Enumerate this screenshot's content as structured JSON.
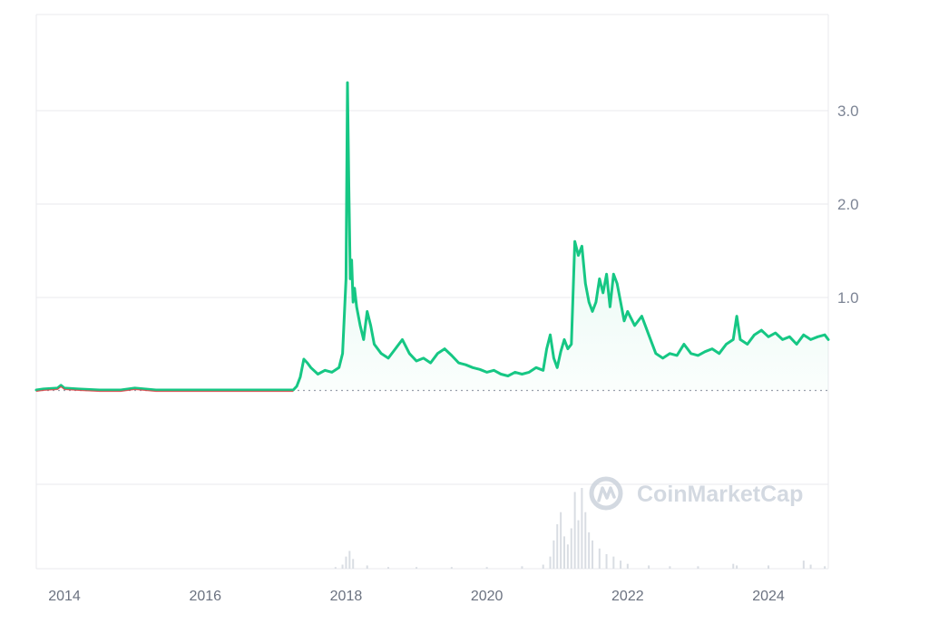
{
  "watermark": "CoinMarketCap",
  "colors": {
    "line": "#16c784",
    "below_baseline": "#ea3943",
    "fill_top": "#16c784",
    "volume": "#d9dde3",
    "grid": "#e8eaee",
    "axis_text": "#7d8595",
    "watermark": "#cfd5de"
  },
  "chart_data": {
    "type": "area",
    "title": "",
    "xlabel": "",
    "ylabel": "",
    "x_ticks": [
      "2014",
      "2016",
      "2018",
      "2020",
      "2022",
      "2024"
    ],
    "y_ticks": [
      "1.0",
      "2.0",
      "3.0"
    ],
    "y_tick_values": [
      1.0,
      2.0,
      3.0
    ],
    "ylim": [
      0,
      4.0
    ],
    "xlim": [
      2013.6,
      2024.85
    ],
    "baseline": 0.005,
    "grid": true,
    "y_axis_position": "right",
    "series": [
      {
        "x": [
          2013.6,
          2013.7,
          2013.9,
          2013.95,
          2014.0,
          2014.2,
          2014.5,
          2014.8,
          2015.0,
          2015.3,
          2015.6,
          2016.0,
          2016.5,
          2017.0,
          2017.25,
          2017.3,
          2017.35,
          2017.4,
          2017.45,
          2017.5,
          2017.6,
          2017.7,
          2017.8,
          2017.9,
          2017.95,
          2018.0,
          2018.02,
          2018.04,
          2018.06,
          2018.08,
          2018.1,
          2018.12,
          2018.15,
          2018.2,
          2018.25,
          2018.3,
          2018.35,
          2018.4,
          2018.5,
          2018.6,
          2018.7,
          2018.8,
          2018.9,
          2019.0,
          2019.1,
          2019.2,
          2019.3,
          2019.4,
          2019.5,
          2019.6,
          2019.7,
          2019.8,
          2019.9,
          2020.0,
          2020.1,
          2020.2,
          2020.3,
          2020.4,
          2020.5,
          2020.6,
          2020.7,
          2020.8,
          2020.85,
          2020.9,
          2020.95,
          2021.0,
          2021.05,
          2021.1,
          2021.15,
          2021.2,
          2021.25,
          2021.3,
          2021.35,
          2021.4,
          2021.45,
          2021.5,
          2021.55,
          2021.6,
          2021.65,
          2021.7,
          2021.75,
          2021.8,
          2021.85,
          2021.9,
          2021.95,
          2022.0,
          2022.1,
          2022.2,
          2022.3,
          2022.4,
          2022.5,
          2022.6,
          2022.7,
          2022.8,
          2022.9,
          2023.0,
          2023.1,
          2023.2,
          2023.3,
          2023.4,
          2023.5,
          2023.55,
          2023.6,
          2023.7,
          2023.8,
          2023.9,
          2024.0,
          2024.1,
          2024.2,
          2024.3,
          2024.4,
          2024.5,
          2024.6,
          2024.7,
          2024.8,
          2024.85
        ],
        "values": [
          0.01,
          0.02,
          0.03,
          0.06,
          0.03,
          0.02,
          0.01,
          0.01,
          0.03,
          0.01,
          0.01,
          0.01,
          0.01,
          0.01,
          0.01,
          0.05,
          0.15,
          0.34,
          0.3,
          0.25,
          0.18,
          0.22,
          0.2,
          0.25,
          0.4,
          1.2,
          3.3,
          2.2,
          1.2,
          1.4,
          0.95,
          1.1,
          0.9,
          0.7,
          0.55,
          0.85,
          0.7,
          0.5,
          0.4,
          0.35,
          0.45,
          0.55,
          0.4,
          0.32,
          0.35,
          0.3,
          0.4,
          0.45,
          0.38,
          0.3,
          0.28,
          0.25,
          0.23,
          0.2,
          0.22,
          0.18,
          0.16,
          0.2,
          0.18,
          0.2,
          0.25,
          0.22,
          0.45,
          0.6,
          0.35,
          0.25,
          0.42,
          0.55,
          0.45,
          0.5,
          1.6,
          1.45,
          1.55,
          1.15,
          0.95,
          0.85,
          0.95,
          1.2,
          1.05,
          1.25,
          0.9,
          1.25,
          1.15,
          0.95,
          0.75,
          0.85,
          0.7,
          0.8,
          0.6,
          0.4,
          0.35,
          0.4,
          0.38,
          0.5,
          0.4,
          0.38,
          0.42,
          0.45,
          0.4,
          0.5,
          0.55,
          0.8,
          0.55,
          0.5,
          0.6,
          0.65,
          0.58,
          0.62,
          0.55,
          0.58,
          0.5,
          0.6,
          0.55,
          0.58,
          0.6,
          0.55
        ]
      }
    ],
    "volume": {
      "x": [
        2017.85,
        2017.95,
        2018.0,
        2018.05,
        2018.1,
        2018.3,
        2018.6,
        2019.0,
        2019.5,
        2020.0,
        2020.5,
        2020.8,
        2020.9,
        2020.95,
        2021.0,
        2021.05,
        2021.1,
        2021.15,
        2021.2,
        2021.25,
        2021.3,
        2021.35,
        2021.4,
        2021.45,
        2021.5,
        2021.6,
        2021.7,
        2021.8,
        2021.9,
        2022.0,
        2022.3,
        2022.6,
        2023.0,
        2023.5,
        2023.55,
        2024.0,
        2024.5,
        2024.6,
        2024.8
      ],
      "values": [
        0.02,
        0.05,
        0.15,
        0.22,
        0.12,
        0.04,
        0.02,
        0.02,
        0.02,
        0.02,
        0.03,
        0.05,
        0.15,
        0.35,
        0.55,
        0.7,
        0.4,
        0.3,
        0.5,
        0.95,
        0.6,
        1.0,
        0.7,
        0.45,
        0.35,
        0.25,
        0.18,
        0.15,
        0.1,
        0.06,
        0.04,
        0.03,
        0.03,
        0.06,
        0.04,
        0.04,
        0.1,
        0.05,
        0.03
      ]
    }
  }
}
